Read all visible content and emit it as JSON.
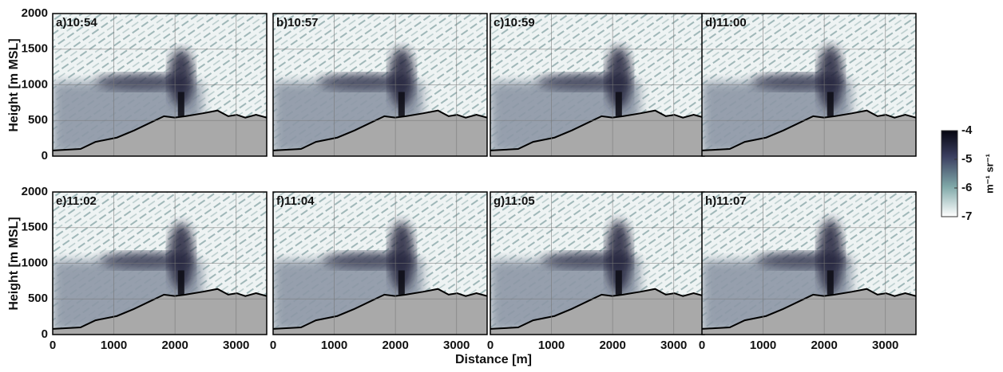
{
  "figure": {
    "panels": [
      {
        "label": "a)10:54"
      },
      {
        "label": "b)10:57"
      },
      {
        "label": "c)10:59"
      },
      {
        "label": "d)11:00"
      },
      {
        "label": "e)11:02"
      },
      {
        "label": "f)11:04"
      },
      {
        "label": "g)11:05"
      },
      {
        "label": "h)11:07"
      }
    ],
    "xlabel": "Distance [m]",
    "ylabel": "Height [m MSL]",
    "xlim": [
      0,
      3500
    ],
    "xticks": [
      0,
      1000,
      2000,
      3000
    ],
    "ylim": [
      0,
      2000
    ],
    "yticks": [
      0,
      500,
      1000,
      1500,
      2000
    ],
    "grid": true,
    "colorbar": {
      "label": "m⁻¹ sr⁻¹",
      "lim": [
        -7,
        -4
      ],
      "ticks": [
        -4,
        -5,
        -6,
        -7
      ]
    }
  }
}
